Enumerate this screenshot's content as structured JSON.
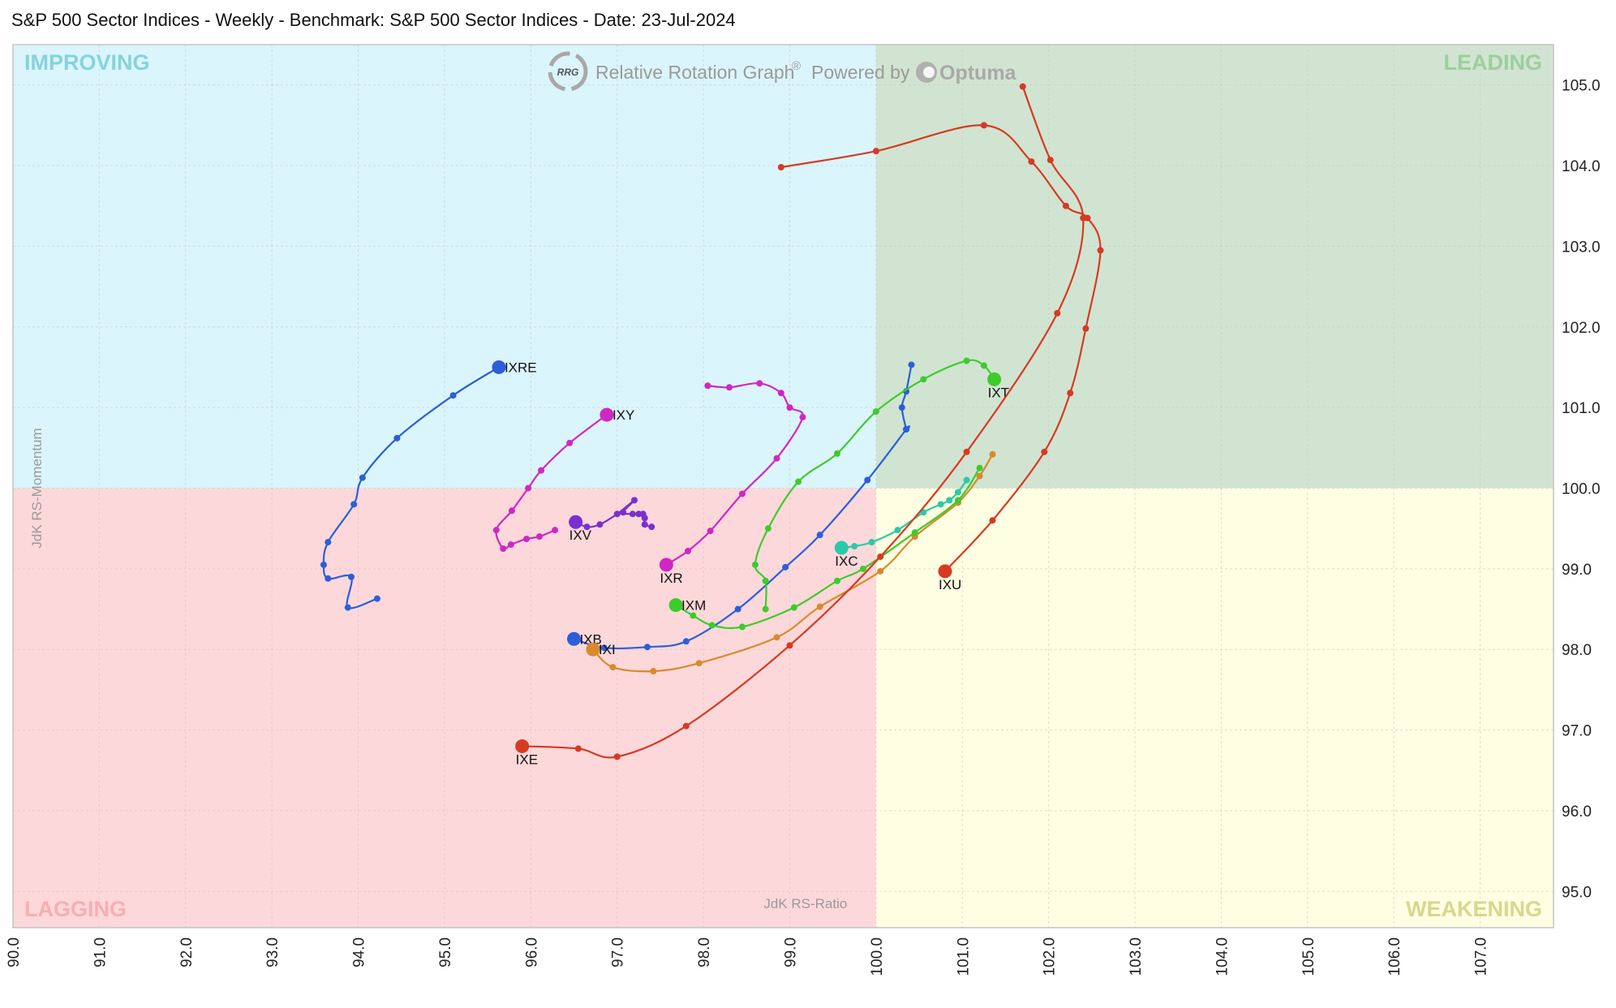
{
  "title": "S&P 500 Sector Indices - Weekly - Benchmark: S&P 500 Sector Indices - Date: 23-Jul-2024",
  "watermark": {
    "logo_text": "RRG",
    "main": "Relative Rotation Graph",
    "registered": "®",
    "powered": "Powered by",
    "brand": "Optuma"
  },
  "quadrants": {
    "improving": {
      "label": "IMPROVING",
      "fill": "#dbf5fc",
      "text": "#86d3dc"
    },
    "leading": {
      "label": "LEADING",
      "fill": "#d1e4d1",
      "text": "#9ccf9c"
    },
    "lagging": {
      "label": "LAGGING",
      "fill": "#fdd8da",
      "text": "#f8aeb2"
    },
    "weakening": {
      "label": "WEAKENING",
      "fill": "#fefee2",
      "text": "#d6d88e"
    }
  },
  "chart_data": {
    "type": "scatter",
    "title": "S&P 500 Sector Indices - Weekly - Benchmark: S&P 500 Sector Indices - Date: 23-Jul-2024",
    "xlabel": "JdK RS-Ratio",
    "ylabel": "JdK RS-Momentum",
    "xlim": [
      90.0,
      107.85
    ],
    "ylim": [
      94.55,
      105.5
    ],
    "center": [
      100,
      100
    ],
    "xticks": [
      "90.0",
      "91.0",
      "92.0",
      "93.0",
      "94.0",
      "95.0",
      "96.0",
      "97.0",
      "98.0",
      "99.0",
      "100.0",
      "101.0",
      "102.0",
      "103.0",
      "104.0",
      "105.0",
      "106.0",
      "107.0"
    ],
    "yticks": [
      "95.0",
      "96.0",
      "97.0",
      "98.0",
      "99.0",
      "100.0",
      "101.0",
      "102.0",
      "103.0",
      "104.0",
      "105.0"
    ],
    "grid": true,
    "series": [
      {
        "name": "IXRE",
        "color": "#2b5fd9",
        "x": [
          94.22,
          93.88,
          93.92,
          93.65,
          93.6,
          93.65,
          93.95,
          94.05,
          94.45,
          95.1,
          95.63
        ],
        "y": [
          98.63,
          98.52,
          98.9,
          98.88,
          99.05,
          99.33,
          99.8,
          100.13,
          100.62,
          101.15,
          101.5
        ]
      },
      {
        "name": "IXY",
        "color": "#d027c4",
        "x": [
          96.28,
          96.1,
          95.95,
          95.77,
          95.68,
          95.6,
          95.78,
          95.97,
          96.12,
          96.45,
          96.88
        ],
        "y": [
          99.48,
          99.4,
          99.37,
          99.3,
          99.25,
          99.48,
          99.72,
          100.0,
          100.22,
          100.56,
          100.91
        ],
        "label_pos": "right"
      },
      {
        "name": "IXV",
        "color": "#7a2fd1",
        "x": [
          97.4,
          97.32,
          97.32,
          97.3,
          97.25,
          97.18,
          97.07,
          97.2,
          97.0,
          96.8,
          96.65,
          96.52
        ],
        "y": [
          99.52,
          99.55,
          99.63,
          99.68,
          99.68,
          99.68,
          99.7,
          99.85,
          99.68,
          99.55,
          99.52,
          99.58
        ],
        "label_pos": "below"
      },
      {
        "name": "IXR",
        "color": "#d027c4",
        "x": [
          98.05,
          98.3,
          98.65,
          98.9,
          99.0,
          99.15,
          98.85,
          98.45,
          98.08,
          97.82,
          97.57
        ],
        "y": [
          101.27,
          101.25,
          101.3,
          101.18,
          101.0,
          100.88,
          100.37,
          99.93,
          99.47,
          99.22,
          99.05
        ],
        "label_pos": "below"
      },
      {
        "name": "IXB",
        "color": "#2b5fd9",
        "x": [
          100.41,
          100.35,
          100.3,
          100.35,
          100.35,
          99.9,
          99.35,
          98.95,
          98.4,
          97.8,
          97.35,
          96.85,
          96.5
        ],
        "y": [
          101.53,
          101.2,
          101.0,
          100.73,
          100.73,
          100.1,
          99.42,
          99.02,
          98.5,
          98.1,
          98.03,
          98.02,
          98.13
        ],
        "label_pos": "right"
      },
      {
        "name": "IXI",
        "color": "#d98a2b",
        "x": [
          101.35,
          101.2,
          100.95,
          100.45,
          100.05,
          99.35,
          98.85,
          97.95,
          97.42,
          96.95,
          96.72
        ],
        "y": [
          100.42,
          100.15,
          99.82,
          99.4,
          98.97,
          98.53,
          98.15,
          97.83,
          97.73,
          97.78,
          98.0
        ]
      },
      {
        "name": "IXC",
        "color": "#2bc9a8",
        "x": [
          101.05,
          100.95,
          100.85,
          100.75,
          100.55,
          100.25,
          99.95,
          99.75,
          99.6
        ],
        "y": [
          100.1,
          99.95,
          99.85,
          99.8,
          99.7,
          99.48,
          99.33,
          99.28,
          99.26
        ],
        "label_pos": "below"
      },
      {
        "name": "IXT",
        "color": "#3ecb2c",
        "x": [
          98.72,
          98.72,
          98.6,
          98.75,
          99.1,
          99.55,
          100.0,
          100.55,
          101.05,
          101.25,
          101.37
        ],
        "y": [
          98.5,
          98.85,
          99.05,
          99.5,
          100.08,
          100.43,
          100.95,
          101.35,
          101.58,
          101.52,
          101.35
        ],
        "label_pos": "below"
      },
      {
        "name": "IXM",
        "color": "#3ecb2c",
        "x": [
          101.2,
          100.95,
          100.45,
          99.85,
          99.55,
          99.05,
          98.45,
          98.1,
          97.88,
          97.68
        ],
        "y": [
          100.25,
          99.85,
          99.45,
          99.0,
          98.85,
          98.52,
          98.28,
          98.3,
          98.42,
          98.55
        ],
        "label_pos": "right"
      },
      {
        "name": "IXU",
        "color": "#d63a22",
        "x": [
          98.9,
          100.0,
          101.25,
          101.8,
          102.2,
          102.45,
          102.6,
          102.43,
          102.25,
          101.95,
          101.35,
          100.8
        ],
        "y": [
          103.98,
          104.18,
          104.5,
          104.05,
          103.5,
          103.35,
          102.95,
          101.98,
          101.18,
          100.45,
          99.6,
          98.97
        ],
        "label_pos": "below"
      },
      {
        "name": "IXE",
        "color": "#d63a22",
        "x": [
          101.7,
          102.02,
          102.4,
          102.1,
          101.05,
          100.05,
          99.0,
          97.8,
          97.0,
          96.55,
          95.9
        ],
        "y": [
          104.98,
          104.07,
          103.35,
          102.17,
          100.45,
          99.15,
          98.05,
          97.05,
          96.67,
          96.77,
          96.8
        ],
        "label_pos": "below"
      }
    ]
  }
}
